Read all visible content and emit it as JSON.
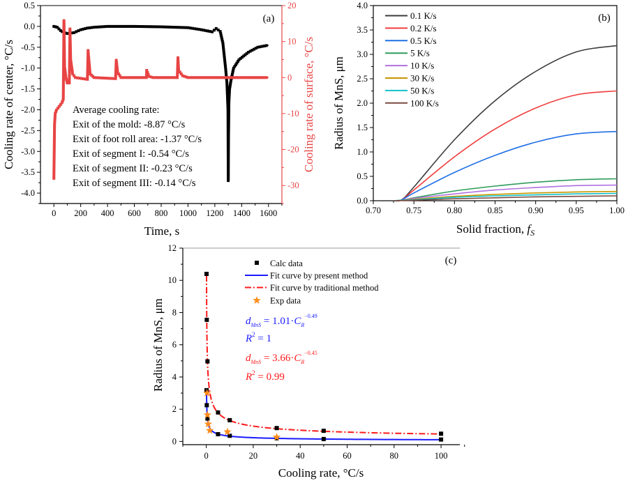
{
  "chart_data": [
    {
      "type": "line",
      "panel_label": "(a)",
      "xlabel": "Time, s",
      "ylabel": "Cooling rate of center, °C/s",
      "y2label": "Cooling rate of surface, °C/s",
      "xlim": [
        -100,
        1700
      ],
      "ylim": [
        -4.25,
        0.5
      ],
      "y2lim": [
        -35,
        20
      ],
      "xticks": [
        0,
        200,
        400,
        600,
        800,
        1000,
        1200,
        1400,
        1600
      ],
      "yticks": [
        "0.5",
        "0.0",
        "-0.5",
        "-1.0",
        "-1.5",
        "-2.0",
        "-2.5",
        "-3.0",
        "-3.5",
        "-4.0"
      ],
      "y2ticks": [
        20,
        10,
        0,
        -10,
        -20,
        -30
      ],
      "grid": false,
      "colors": {
        "center": "#000000",
        "surface": "#e84444"
      },
      "series": [
        {
          "axis": "left",
          "color": "#000000",
          "x": [
            0,
            25,
            50,
            75,
            100,
            150,
            200,
            250,
            300,
            400,
            600,
            800,
            1000,
            1100,
            1180,
            1210,
            1240,
            1260,
            1280,
            1290,
            1298,
            1300,
            1302,
            1305,
            1310,
            1320,
            1340,
            1380,
            1450,
            1520,
            1600
          ],
          "y": [
            0,
            -0.02,
            -0.1,
            -0.15,
            -0.17,
            -0.15,
            -0.08,
            -0.04,
            -0.02,
            0,
            0,
            -0.01,
            -0.03,
            -0.08,
            -0.13,
            -0.05,
            -0.12,
            -0.4,
            -1.0,
            -1.35,
            -2.0,
            -3.7,
            -2.65,
            -1.8,
            -1.5,
            -1.3,
            -1.0,
            -0.8,
            -0.62,
            -0.5,
            -0.45
          ]
        },
        {
          "axis": "right",
          "color": "#e84444",
          "x": [
            0,
            5,
            10,
            20,
            40,
            60,
            70,
            75,
            80,
            90,
            100,
            115,
            120,
            125,
            140,
            160,
            250,
            255,
            270,
            300,
            460,
            465,
            475,
            500,
            690,
            692,
            710,
            740,
            920,
            925,
            930,
            960,
            1000,
            1600
          ],
          "y": [
            -28,
            -13,
            -10,
            -9,
            -8,
            -7,
            -6,
            15.8,
            3,
            0,
            -1.5,
            -1.5,
            13.5,
            5,
            1,
            0,
            -0.5,
            7.5,
            1,
            0,
            -0.3,
            4.8,
            1.5,
            0,
            0,
            2,
            0.3,
            0,
            0,
            5.5,
            2,
            0.5,
            0,
            0
          ]
        }
      ],
      "annotation": [
        "Average cooling rate:",
        "Exit of the mold: -8.87 °C/s",
        "Exit of foot roll area: -1.37 °C/s",
        "Exit of segment I: -0.54 °C/s",
        "Exit of segment II: -0.23 °C/s",
        "Exit of segment III: -0.14 °C/s"
      ]
    },
    {
      "type": "line",
      "panel_label": "(b)",
      "xlabel": {
        "text": "Solid fraction, ",
        "symbol": "f",
        "subscript": "S"
      },
      "ylabel": "Radius of MnS, μm",
      "xlim": [
        0.7,
        1.0
      ],
      "ylim": [
        0,
        4.0
      ],
      "xticks": [
        "0.70",
        "0.75",
        "0.80",
        "0.85",
        "0.90",
        "0.95",
        "1.00"
      ],
      "yticks": [
        "0.0",
        "0.5",
        "1.0",
        "1.5",
        "2.0",
        "2.5",
        "3.0",
        "3.5",
        "4.0"
      ],
      "grid": false,
      "legend_position": "top-left",
      "x": [
        0.725,
        0.735,
        0.75,
        0.8,
        0.85,
        0.9,
        0.95,
        1.0
      ],
      "series": [
        {
          "name": "0.1 K/s",
          "color": "#3c3c3c",
          "values": [
            0,
            0.02,
            0.28,
            1.25,
            2.05,
            2.65,
            3.05,
            3.18
          ]
        },
        {
          "name": "0.2 K/s",
          "color": "#f03c3c",
          "values": [
            0,
            0.02,
            0.22,
            0.9,
            1.47,
            1.9,
            2.17,
            2.25
          ]
        },
        {
          "name": "0.5 K/s",
          "color": "#1f6fe6",
          "values": [
            0,
            0.02,
            0.16,
            0.58,
            0.93,
            1.2,
            1.37,
            1.42
          ]
        },
        {
          "name": "5 K/s",
          "color": "#2e9c5a",
          "values": [
            0,
            0.01,
            0.06,
            0.2,
            0.3,
            0.38,
            0.43,
            0.45
          ]
        },
        {
          "name": "10 K/s",
          "color": "#b070e0",
          "values": [
            0,
            0.01,
            0.05,
            0.14,
            0.22,
            0.27,
            0.31,
            0.32
          ]
        },
        {
          "name": "30 K/s",
          "color": "#c89600",
          "values": [
            0,
            0.01,
            0.03,
            0.09,
            0.13,
            0.16,
            0.18,
            0.19
          ]
        },
        {
          "name": "50 K/s",
          "color": "#10c0c8",
          "values": [
            0,
            0.01,
            0.02,
            0.07,
            0.1,
            0.12,
            0.14,
            0.15
          ]
        },
        {
          "name": "100 K/s",
          "color": "#7a4a40",
          "values": [
            0,
            0.005,
            0.01,
            0.04,
            0.06,
            0.08,
            0.09,
            0.1
          ]
        }
      ]
    },
    {
      "type": "scatter",
      "panel_label": "(c)",
      "xlabel": "Cooling rate, °C/s",
      "ylabel": "Radius of MnS, μm",
      "xlim": [
        -10,
        108
      ],
      "ylim": [
        -0.2,
        12
      ],
      "xticks": [
        0,
        20,
        40,
        60,
        80,
        100
      ],
      "yticks": [
        0,
        2,
        4,
        6,
        8,
        10,
        12
      ],
      "grid": false,
      "legend_position": "top-center",
      "calc_data": {
        "name": "Calc data",
        "color": "#000000",
        "x": [
          0.1,
          0.2,
          0.5,
          0.1,
          0.2,
          0.5,
          5,
          10,
          30,
          50,
          100,
          5,
          10,
          30,
          50,
          100
        ],
        "y": [
          10.4,
          7.55,
          4.97,
          3.18,
          2.25,
          1.42,
          1.8,
          1.32,
          0.83,
          0.66,
          0.48,
          0.45,
          0.35,
          0.2,
          0.15,
          0.12
        ]
      },
      "exp_data": {
        "name": "Exp data",
        "color": "#ff8c1a",
        "x": [
          0.3,
          0.5,
          0.8,
          1.5,
          9,
          30
        ],
        "y": [
          3.0,
          1.65,
          1.08,
          0.68,
          0.6,
          0.27
        ]
      },
      "fits": [
        {
          "name": "Fit curve by present method",
          "color": "#1a1aff",
          "style": "solid",
          "lhs": "d",
          "lhs_sub": "MnS",
          "coef": 1.01,
          "var": "C",
          "var_sub": "R",
          "exponent": -0.49,
          "exponent_text": "−0.49",
          "r2": "1"
        },
        {
          "name": "Fit curve by traditional method",
          "color": "#ff1a1a",
          "style": "dash-dot",
          "lhs": "d",
          "lhs_sub": "MnS",
          "coef": 3.66,
          "var": "C",
          "var_sub": "R",
          "exponent": -0.45,
          "exponent_text": "−0.45",
          "r2": "0.99"
        }
      ]
    }
  ]
}
